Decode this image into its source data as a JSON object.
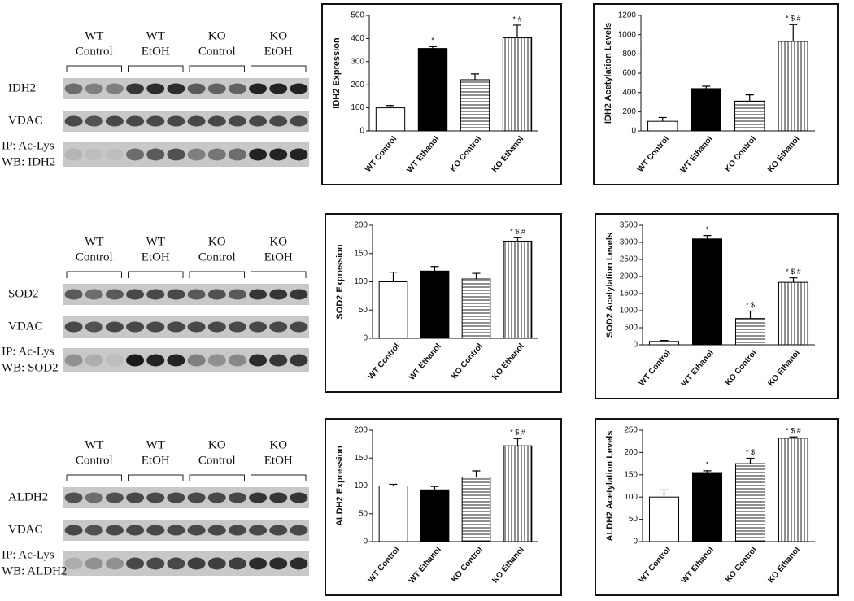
{
  "blots": [
    {
      "groups": [
        [
          "WT",
          "Control"
        ],
        [
          "WT",
          "EtOH"
        ],
        [
          "KO",
          "Control"
        ],
        [
          "KO",
          "EtOH"
        ]
      ],
      "rows": [
        [
          "IDH2"
        ],
        [
          "VDAC"
        ],
        [
          "IP: Ac-Lys",
          "WB: IDH2"
        ]
      ]
    },
    {
      "groups": [
        [
          "WT",
          "Control"
        ],
        [
          "WT",
          "EtOH"
        ],
        [
          "KO",
          "Control"
        ],
        [
          "KO",
          "EtOH"
        ]
      ],
      "rows": [
        [
          "SOD2"
        ],
        [
          "VDAC"
        ],
        [
          "IP: Ac-Lys",
          "WB: SOD2"
        ]
      ]
    },
    {
      "groups": [
        [
          "WT",
          "Control"
        ],
        [
          "WT",
          "EtOH"
        ],
        [
          "KO",
          "Control"
        ],
        [
          "KO",
          "EtOH"
        ]
      ],
      "rows": [
        [
          "ALDH2"
        ],
        [
          "VDAC"
        ],
        [
          "IP: Ac-Lys",
          "WB: ALDH2"
        ]
      ]
    }
  ],
  "chart_data": [
    {
      "type": "bar",
      "ylabel": "IDH2 Expression",
      "categories": [
        "WT Control",
        "WT Ethanol",
        "KO Control",
        "KO Ethanol"
      ],
      "values": [
        100,
        357,
        222,
        403
      ],
      "errors": [
        10,
        8,
        25,
        55
      ],
      "annotations": [
        null,
        "*",
        null,
        "* #"
      ],
      "fills": [
        "open",
        "solid",
        "horizontal-lines",
        "vertical-lines"
      ],
      "ylim": [
        0,
        500
      ],
      "yticks": [
        0,
        100,
        200,
        300,
        400,
        500
      ]
    },
    {
      "type": "bar",
      "ylabel": "IDH2 Acetylation Levels",
      "categories": [
        "WT Control",
        "WT Ethanol",
        "KO Control",
        "KO Ethanol"
      ],
      "values": [
        100,
        440,
        310,
        930
      ],
      "errors": [
        40,
        25,
        65,
        175
      ],
      "annotations": [
        null,
        null,
        null,
        "* $ #"
      ],
      "fills": [
        "open",
        "solid",
        "horizontal-lines",
        "vertical-lines"
      ],
      "ylim": [
        0,
        1200
      ],
      "yticks": [
        0,
        200,
        400,
        600,
        800,
        1000,
        1200
      ]
    },
    {
      "type": "bar",
      "ylabel": "SOD2 Expression",
      "categories": [
        "WT Control",
        "WT Ethanol",
        "KO Control",
        "KO Ethanol"
      ],
      "values": [
        100,
        119,
        105,
        172
      ],
      "errors": [
        17,
        8,
        10,
        6
      ],
      "annotations": [
        null,
        null,
        null,
        "* $ #"
      ],
      "fills": [
        "open",
        "solid",
        "horizontal-lines",
        "vertical-lines"
      ],
      "ylim": [
        0,
        200
      ],
      "yticks": [
        0,
        50,
        100,
        150,
        200
      ]
    },
    {
      "type": "bar",
      "ylabel": "SOD2 Acetylation Levels",
      "categories": [
        "WT Control",
        "WT Ethanol",
        "KO Control",
        "KO Ethanol"
      ],
      "values": [
        100,
        3100,
        770,
        1830
      ],
      "errors": [
        30,
        100,
        220,
        130
      ],
      "annotations": [
        null,
        "*",
        "* $",
        "* $ #"
      ],
      "fills": [
        "open",
        "solid",
        "horizontal-lines",
        "vertical-lines"
      ],
      "ylim": [
        0,
        3500
      ],
      "yticks": [
        0,
        500,
        1000,
        1500,
        2000,
        2500,
        3000,
        3500
      ]
    },
    {
      "type": "bar",
      "ylabel": "ALDH2 Expression",
      "categories": [
        "WT Control",
        "WT Ethanol",
        "KO Control",
        "KO Ethanol"
      ],
      "values": [
        100,
        93,
        116,
        172
      ],
      "errors": [
        3,
        6,
        11,
        13
      ],
      "annotations": [
        null,
        null,
        null,
        "* $ #"
      ],
      "fills": [
        "open",
        "solid",
        "horizontal-lines",
        "vertical-lines"
      ],
      "ylim": [
        0,
        200
      ],
      "yticks": [
        0,
        50,
        100,
        150,
        200
      ]
    },
    {
      "type": "bar",
      "ylabel": "ALDH2 Acetylation Levels",
      "categories": [
        "WT Control",
        "WT Ethanol",
        "KO Control",
        "KO Ethanol"
      ],
      "values": [
        100,
        155,
        175,
        232
      ],
      "errors": [
        16,
        4,
        12,
        3
      ],
      "annotations": [
        null,
        "*",
        "* $",
        "* $ #"
      ],
      "fills": [
        "open",
        "solid",
        "horizontal-lines",
        "vertical-lines"
      ],
      "ylim": [
        0,
        250
      ],
      "yticks": [
        0,
        50,
        100,
        150,
        200,
        250
      ]
    }
  ]
}
